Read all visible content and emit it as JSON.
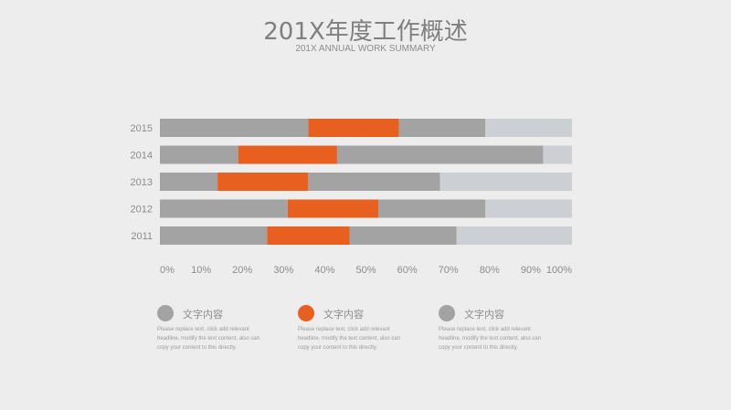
{
  "header": {
    "title": "201X年度工作概述",
    "subtitle": "201X ANNUAL WORK SUMMARY"
  },
  "colors": {
    "gray": "#a3a3a3",
    "orange": "#e8601f",
    "light": "#ccd0d5",
    "axis_text": "#8c8c8c",
    "background": "#ededed"
  },
  "chart_data": {
    "type": "bar",
    "orientation": "horizontal",
    "stacked": true,
    "categories": [
      "2015",
      "2014",
      "2013",
      "2012",
      "2011"
    ],
    "series": [
      {
        "values": [
          36,
          19,
          14,
          31,
          26
        ],
        "color": "#a3a3a3"
      },
      {
        "values": [
          22,
          24,
          22,
          22,
          20
        ],
        "color": "#e8601f"
      },
      {
        "values": [
          21,
          50,
          32,
          26,
          26
        ],
        "color": "#a3a3a3"
      },
      {
        "values": [
          21,
          7,
          32,
          21,
          28
        ],
        "color": "#ccd0d5"
      }
    ],
    "xlim": [
      0,
      100
    ],
    "x_ticks": [
      "0%",
      "10%",
      "20%",
      "30%",
      "40%",
      "50%",
      "60%",
      "70%",
      "80%",
      "90%",
      "100%"
    ],
    "grid": false,
    "legend": "bottom"
  },
  "legend": [
    {
      "title": "文字内容",
      "color": "#a3a3a3",
      "lines": [
        "Please replace text, click add relevant",
        "headline, modify the text content, also can",
        "copy your content to this directly."
      ]
    },
    {
      "title": "文字内容",
      "color": "#e8601f",
      "lines": [
        "Please replace text, click add relevant",
        "headline, modify the text content, also can",
        "copy your content to this directly."
      ]
    },
    {
      "title": "文字内容",
      "color": "#a3a3a3",
      "lines": [
        "Please replace text, click add relevant",
        "headline, modify the text content, also can",
        "copy your content to this directly."
      ]
    }
  ]
}
